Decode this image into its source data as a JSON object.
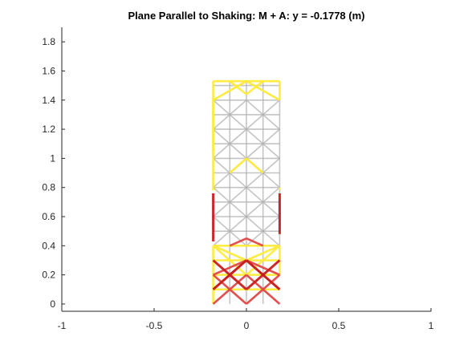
{
  "chart_data": {
    "type": "line",
    "title": "Plane Parallel to Shaking: M + A: y = -0.1778 (m)",
    "xlabel": "",
    "ylabel": "",
    "xlim": [
      -1,
      1
    ],
    "ylim": [
      -0.05,
      1.9
    ],
    "xticks": [
      -1,
      -0.5,
      0,
      0.5,
      1
    ],
    "xtick_labels": [
      "-1",
      "-0.5",
      "0",
      "0.5",
      "1"
    ],
    "yticks": [
      0,
      0.2,
      0.4,
      0.6,
      0.8,
      1,
      1.2,
      1.4,
      1.6,
      1.8
    ],
    "ytick_labels": [
      "0",
      "0.2",
      "0.4",
      "0.6",
      "0.8",
      "1",
      "1.2",
      "1.4",
      "1.6",
      "1.8"
    ],
    "grid": false,
    "box": false,
    "structure": {
      "x_left": -0.18,
      "x_right": 0.18,
      "x_inner": [
        -0.09,
        0,
        0.09
      ],
      "levels": [
        0,
        0.1,
        0.2,
        0.3,
        0.4,
        0.5,
        0.6,
        0.7,
        0.8,
        0.9,
        1.0,
        1.1,
        1.2,
        1.3,
        1.4,
        1.5,
        1.53
      ]
    },
    "series": [
      {
        "color": "#b0b0b0",
        "segments": [
          [
            [
              -0.18,
              0.4
            ],
            [
              0.0,
              0.6
            ]
          ],
          [
            [
              0.0,
              0.6
            ],
            [
              0.18,
              0.4
            ]
          ],
          [
            [
              -0.18,
              0.6
            ],
            [
              0.0,
              0.4
            ]
          ],
          [
            [
              0.0,
              0.4
            ],
            [
              0.18,
              0.6
            ]
          ],
          [
            [
              -0.18,
              0.6
            ],
            [
              0.0,
              0.8
            ]
          ],
          [
            [
              0.0,
              0.8
            ],
            [
              0.18,
              0.6
            ]
          ],
          [
            [
              -0.18,
              0.8
            ],
            [
              0.0,
              0.6
            ]
          ],
          [
            [
              0.0,
              0.6
            ],
            [
              0.18,
              0.8
            ]
          ],
          [
            [
              -0.18,
              0.8
            ],
            [
              0.0,
              1.0
            ]
          ],
          [
            [
              0.0,
              1.0
            ],
            [
              0.18,
              0.8
            ]
          ],
          [
            [
              -0.18,
              1.0
            ],
            [
              0.0,
              0.8
            ]
          ],
          [
            [
              0.0,
              0.8
            ],
            [
              0.18,
              1.0
            ]
          ],
          [
            [
              -0.18,
              1.0
            ],
            [
              0.0,
              1.2
            ]
          ],
          [
            [
              0.0,
              1.2
            ],
            [
              0.18,
              1.0
            ]
          ],
          [
            [
              -0.18,
              1.2
            ],
            [
              0.0,
              1.0
            ]
          ],
          [
            [
              0.0,
              1.0
            ],
            [
              0.18,
              1.2
            ]
          ],
          [
            [
              -0.18,
              1.2
            ],
            [
              0.0,
              1.4
            ]
          ],
          [
            [
              0.0,
              1.4
            ],
            [
              0.18,
              1.2
            ]
          ],
          [
            [
              -0.18,
              1.4
            ],
            [
              0.0,
              1.2
            ]
          ],
          [
            [
              0.0,
              1.2
            ],
            [
              0.18,
              1.4
            ]
          ],
          [
            [
              -0.18,
              1.4
            ],
            [
              0.0,
              1.53
            ]
          ],
          [
            [
              0.0,
              1.53
            ],
            [
              0.18,
              1.4
            ]
          ],
          [
            [
              -0.09,
              0.0
            ],
            [
              -0.09,
              1.53
            ]
          ],
          [
            [
              0.0,
              0.0
            ],
            [
              0.0,
              1.53
            ]
          ],
          [
            [
              0.09,
              0.0
            ],
            [
              0.09,
              1.53
            ]
          ],
          [
            [
              -0.18,
              0.5
            ],
            [
              0.18,
              0.5
            ]
          ],
          [
            [
              -0.18,
              0.7
            ],
            [
              0.18,
              0.7
            ]
          ],
          [
            [
              -0.18,
              0.9
            ],
            [
              0.18,
              0.9
            ]
          ],
          [
            [
              -0.18,
              1.1
            ],
            [
              0.18,
              1.1
            ]
          ],
          [
            [
              -0.18,
              1.3
            ],
            [
              0.18,
              1.3
            ]
          ],
          [
            [
              -0.18,
              1.5
            ],
            [
              0.18,
              1.5
            ]
          ],
          [
            [
              -0.18,
              0.6
            ],
            [
              0.18,
              0.6
            ]
          ],
          [
            [
              -0.18,
              0.8
            ],
            [
              0.18,
              0.8
            ]
          ],
          [
            [
              -0.18,
              1.0
            ],
            [
              0.18,
              1.0
            ]
          ],
          [
            [
              -0.18,
              1.2
            ],
            [
              0.18,
              1.2
            ]
          ],
          [
            [
              -0.18,
              1.4
            ],
            [
              0.18,
              1.4
            ]
          ],
          [
            [
              0.18,
              0.4
            ],
            [
              0.18,
              1.53
            ]
          ],
          [
            [
              -0.18,
              0.8
            ],
            [
              -0.18,
              1.53
            ]
          ]
        ]
      },
      {
        "color": "#ffeb3b",
        "segments": [
          [
            [
              -0.18,
              0.0
            ],
            [
              -0.18,
              0.4
            ]
          ],
          [
            [
              -0.18,
              0.78
            ],
            [
              -0.18,
              1.53
            ]
          ],
          [
            [
              -0.18,
              1.53
            ],
            [
              0.18,
              1.53
            ]
          ],
          [
            [
              0.18,
              1.53
            ],
            [
              0.18,
              1.4
            ]
          ],
          [
            [
              0.18,
              0.8
            ],
            [
              0.18,
              0.78
            ]
          ],
          [
            [
              0.18,
              0.4
            ],
            [
              0.18,
              0.2
            ]
          ],
          [
            [
              -0.18,
              0.4
            ],
            [
              0.18,
              0.4
            ]
          ],
          [
            [
              -0.18,
              0.3
            ],
            [
              0.18,
              0.3
            ]
          ],
          [
            [
              -0.18,
              0.2
            ],
            [
              0.18,
              0.2
            ]
          ],
          [
            [
              -0.18,
              0.1
            ],
            [
              0.18,
              0.1
            ]
          ],
          [
            [
              -0.18,
              0.4
            ],
            [
              0.0,
              0.3
            ]
          ],
          [
            [
              0.0,
              0.3
            ],
            [
              0.18,
              0.4
            ]
          ],
          [
            [
              -0.18,
              1.4
            ],
            [
              0.0,
              1.53
            ]
          ],
          [
            [
              0.0,
              1.53
            ],
            [
              0.18,
              1.4
            ]
          ],
          [
            [
              -0.09,
              1.53
            ],
            [
              0.0,
              1.44
            ]
          ],
          [
            [
              0.0,
              1.44
            ],
            [
              0.09,
              1.53
            ]
          ],
          [
            [
              -0.09,
              0.9
            ],
            [
              0.0,
              1.0
            ]
          ],
          [
            [
              0.0,
              1.0
            ],
            [
              0.09,
              0.9
            ]
          ],
          [
            [
              -0.18,
              0.4
            ],
            [
              0.0,
              0.2
            ]
          ],
          [
            [
              0.0,
              0.2
            ],
            [
              0.18,
              0.4
            ]
          ],
          [
            [
              -0.18,
              1.05
            ],
            [
              -0.18,
              1.4
            ]
          ]
        ]
      },
      {
        "color": "#e24646",
        "segments": [
          [
            [
              -0.18,
              0.0
            ],
            [
              0.0,
              0.2
            ]
          ],
          [
            [
              0.0,
              0.2
            ],
            [
              0.18,
              0.0
            ]
          ],
          [
            [
              -0.18,
              0.2
            ],
            [
              0.0,
              0.0
            ]
          ],
          [
            [
              0.0,
              0.0
            ],
            [
              0.18,
              0.2
            ]
          ],
          [
            [
              -0.18,
              0.2
            ],
            [
              0.0,
              0.3
            ]
          ],
          [
            [
              0.0,
              0.3
            ],
            [
              0.18,
              0.2
            ]
          ],
          [
            [
              -0.18,
              0.1
            ],
            [
              0.0,
              0.3
            ]
          ],
          [
            [
              0.0,
              0.3
            ],
            [
              0.18,
              0.1
            ]
          ],
          [
            [
              -0.09,
              0.4
            ],
            [
              0.0,
              0.45
            ]
          ],
          [
            [
              0.0,
              0.45
            ],
            [
              0.09,
              0.4
            ]
          ]
        ]
      },
      {
        "color": "#c81e1e",
        "segments": [
          [
            [
              -0.18,
              0.76
            ],
            [
              -0.18,
              0.43
            ]
          ],
          [
            [
              0.18,
              0.76
            ],
            [
              0.18,
              0.48
            ]
          ],
          [
            [
              -0.18,
              0.1
            ],
            [
              0.0,
              0.3
            ]
          ],
          [
            [
              0.0,
              0.3
            ],
            [
              0.18,
              0.1
            ]
          ],
          [
            [
              -0.18,
              0.3
            ],
            [
              0.0,
              0.1
            ]
          ],
          [
            [
              0.0,
              0.1
            ],
            [
              0.18,
              0.3
            ]
          ]
        ]
      }
    ]
  }
}
